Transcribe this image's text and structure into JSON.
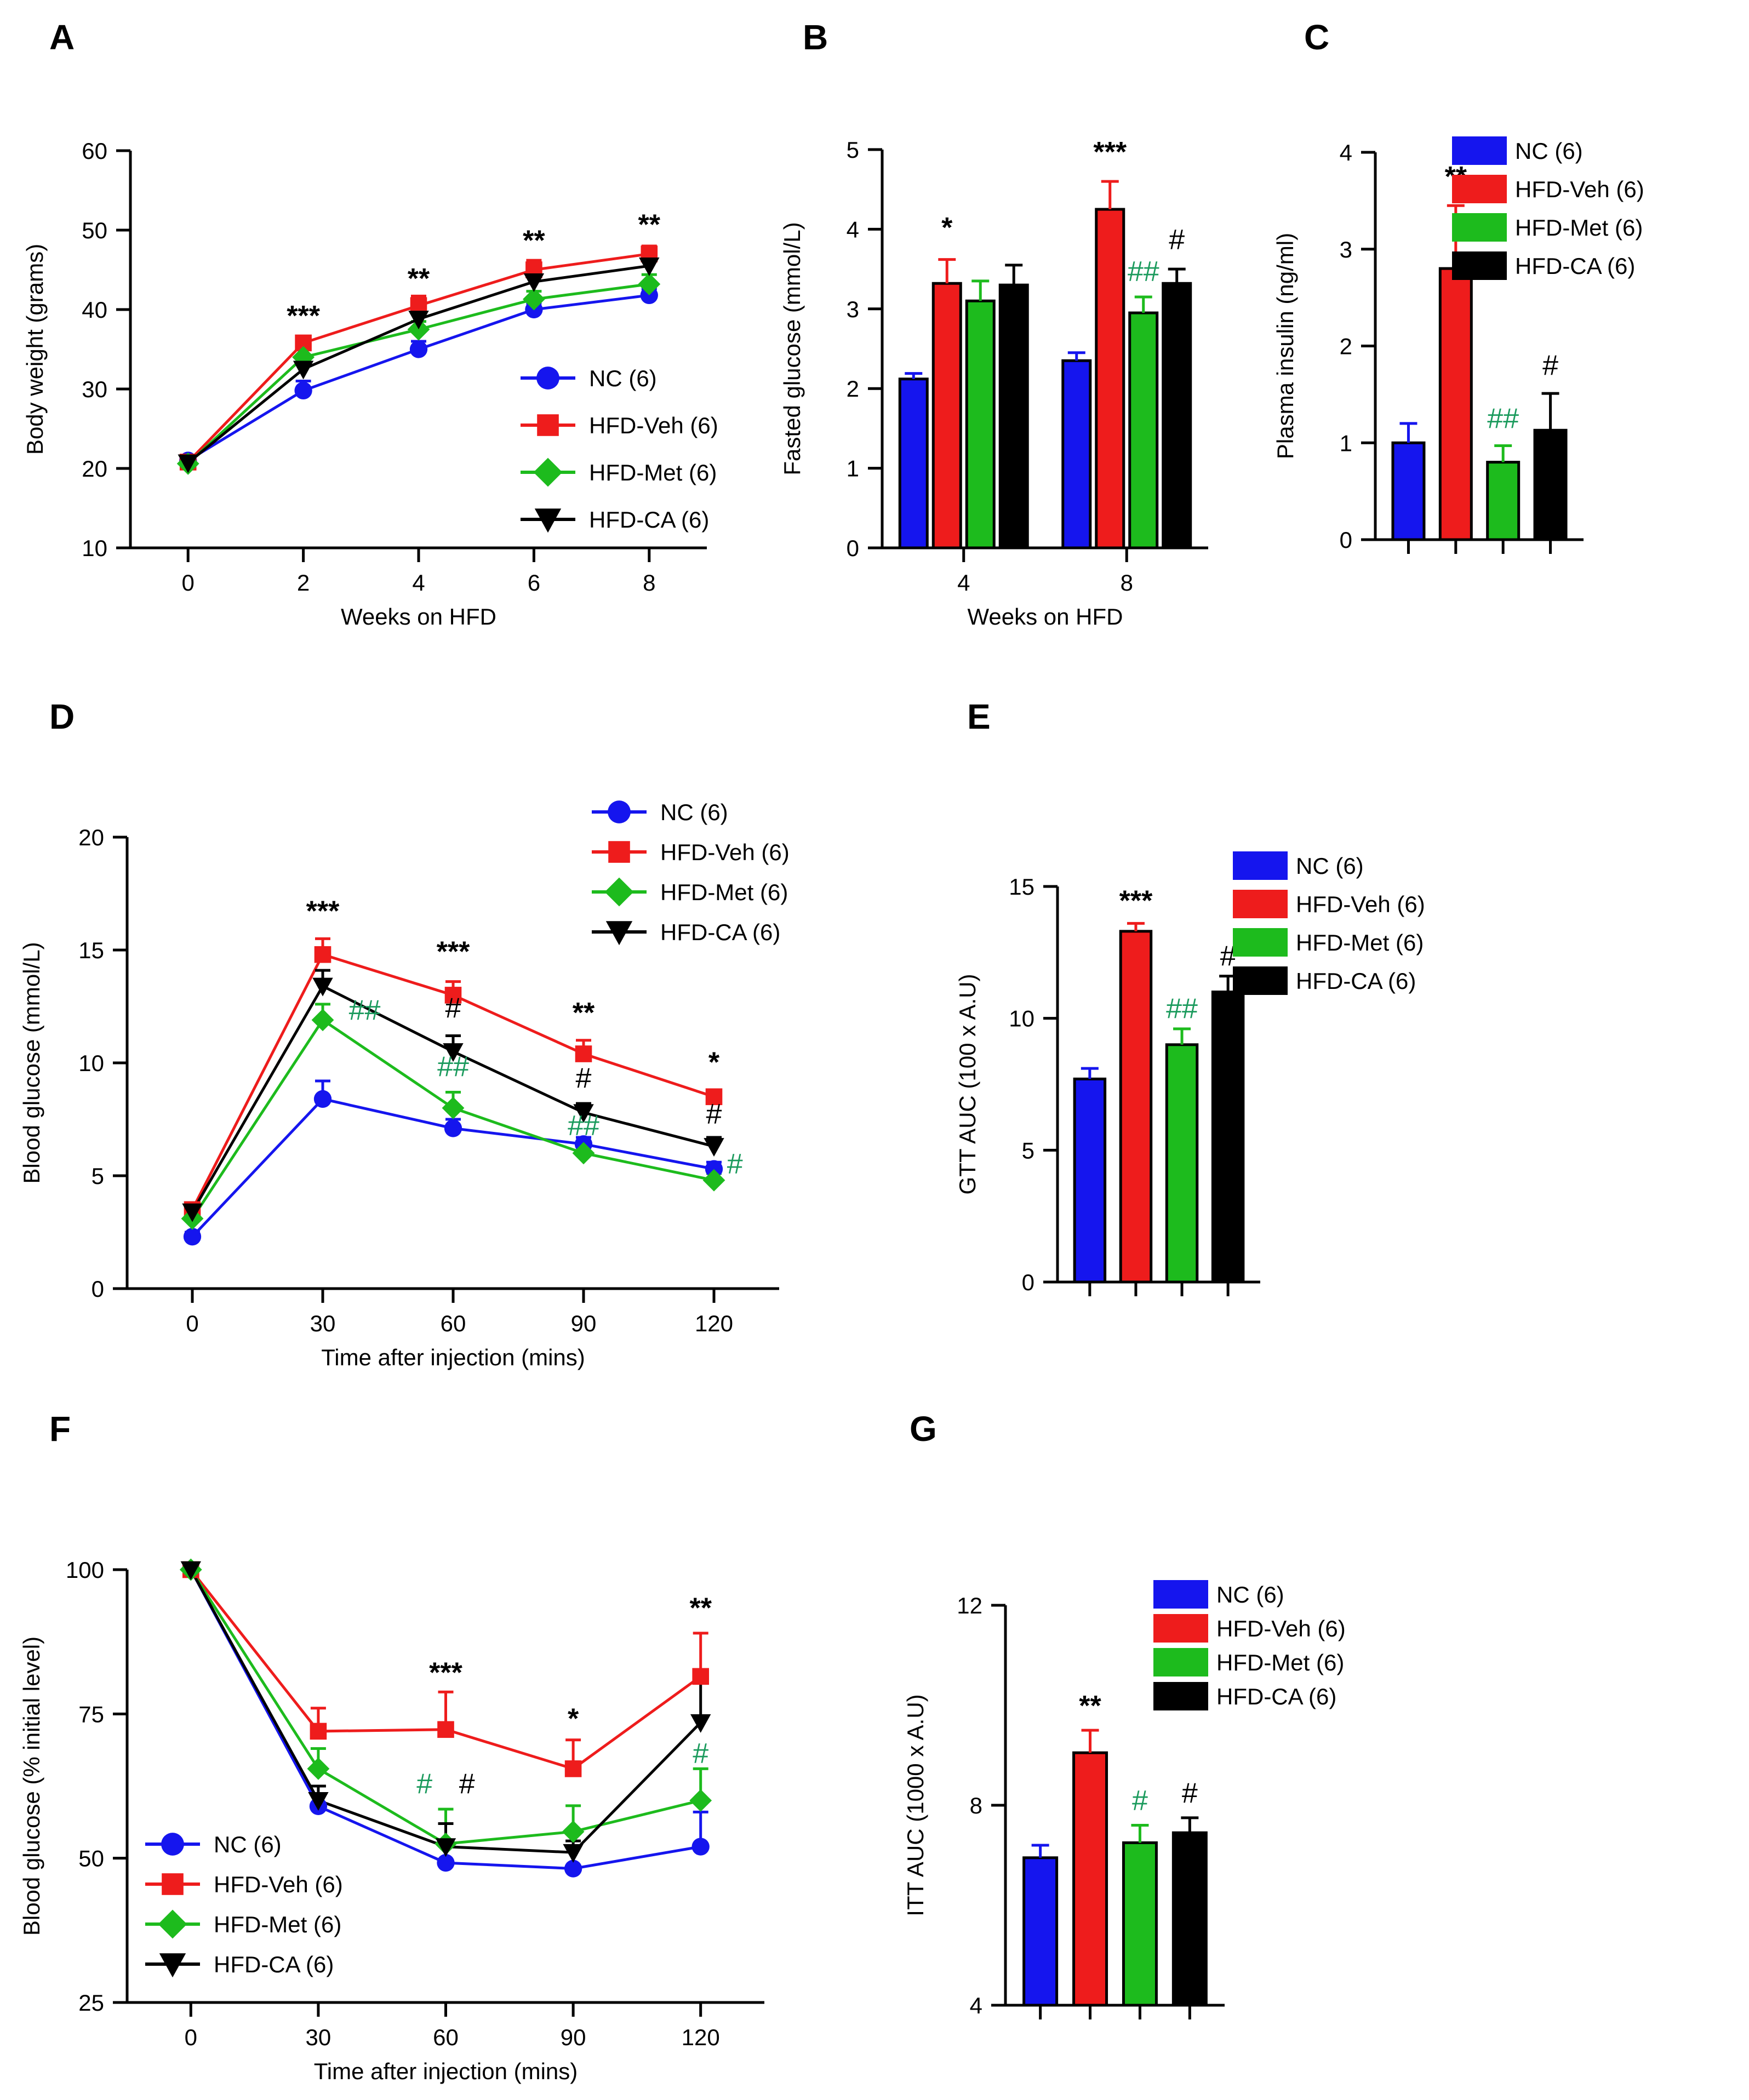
{
  "series_colors": {
    "NC": "#1515ee",
    "HFD-Veh": "#ee1c1c",
    "HFD-Met": "#1dbb1d",
    "HFD-CA": "#000000"
  },
  "annot_colors": {
    "black": "#000000",
    "green": "#1a9a5c"
  },
  "chart_data": [
    {
      "id": "A",
      "panel_label": "A",
      "type": "line",
      "xlabel": "Weeks on HFD",
      "ylabel": "Body weight (grams)",
      "ylim": [
        10,
        60
      ],
      "yticks": [
        10,
        20,
        30,
        40,
        50,
        60
      ],
      "x": [
        0,
        2,
        4,
        6,
        8
      ],
      "xticks": [
        0,
        2,
        4,
        6,
        8
      ],
      "xlim": [
        -1,
        9
      ],
      "series": [
        {
          "name": "NC (6)",
          "key": "NC",
          "values": [
            21,
            29.8,
            35,
            40,
            41.8
          ],
          "err": [
            0.4,
            1.2,
            1.0,
            0.8,
            0.8
          ]
        },
        {
          "name": "HFD-Veh (6)",
          "key": "HFD-Veh",
          "values": [
            20.8,
            35.8,
            40.5,
            45,
            47
          ],
          "err": [
            0.4,
            0.8,
            1.2,
            1.2,
            1.0
          ]
        },
        {
          "name": "HFD-Met (6)",
          "key": "HFD-Met",
          "values": [
            20.6,
            34,
            37.5,
            41.3,
            43.2
          ],
          "err": [
            0.4,
            1.0,
            1.0,
            1.0,
            1.2
          ]
        },
        {
          "name": "HFD-CA (6)",
          "key": "HFD-CA",
          "values": [
            20.7,
            32.5,
            38.8,
            43.5,
            45.5
          ],
          "err": [
            0.4,
            0.8,
            1.0,
            1.0,
            1.0
          ]
        }
      ],
      "annotations": [
        {
          "text": "***",
          "x": 2,
          "y": 38,
          "color": "black"
        },
        {
          "text": "**",
          "x": 4,
          "y": 42.7,
          "color": "black"
        },
        {
          "text": "**",
          "x": 6,
          "y": 47.5,
          "color": "black"
        },
        {
          "text": "**",
          "x": 8,
          "y": 49.5,
          "color": "black"
        }
      ]
    },
    {
      "id": "B",
      "panel_label": "B",
      "type": "bar",
      "xlabel": "Weeks on HFD",
      "ylabel": "Fasted glucose (mmol/L)",
      "ylim": [
        0,
        5
      ],
      "yticks": [
        0,
        1,
        2,
        3,
        4,
        5
      ],
      "categories": [
        "4",
        "8"
      ],
      "series": [
        {
          "name": "NC (6)",
          "key": "NC",
          "values": [
            2.12,
            2.35
          ],
          "err": [
            0.07,
            0.1
          ]
        },
        {
          "name": "HFD-Veh (6)",
          "key": "HFD-Veh",
          "values": [
            3.32,
            4.25
          ],
          "err": [
            0.3,
            0.35
          ]
        },
        {
          "name": "HFD-Met (6)",
          "key": "HFD-Met",
          "values": [
            3.1,
            2.95
          ],
          "err": [
            0.25,
            0.2
          ]
        },
        {
          "name": "HFD-CA (6)",
          "key": "HFD-CA",
          "values": [
            3.3,
            3.32
          ],
          "err": [
            0.25,
            0.18
          ]
        }
      ],
      "annotations": [
        {
          "text": "*",
          "cat": 0,
          "bar": 1,
          "y": 3.9,
          "color": "black"
        },
        {
          "text": "***",
          "cat": 1,
          "bar": 1,
          "y": 4.85,
          "color": "black"
        },
        {
          "text": "##",
          "cat": 1,
          "bar": 2,
          "y": 3.35,
          "color": "green"
        },
        {
          "text": "#",
          "cat": 1,
          "bar": 3,
          "y": 3.75,
          "color": "black"
        }
      ]
    },
    {
      "id": "C",
      "panel_label": "C",
      "type": "bar",
      "xlabel": "",
      "ylabel": "Plasma insulin (ng/ml)",
      "ylim": [
        0,
        4
      ],
      "yticks": [
        0,
        1,
        2,
        3,
        4
      ],
      "categories": [
        ""
      ],
      "series": [
        {
          "name": "NC (6)",
          "key": "NC",
          "values": [
            1.0
          ],
          "err": [
            0.2
          ]
        },
        {
          "name": "HFD-Veh (6)",
          "key": "HFD-Veh",
          "values": [
            2.8
          ],
          "err": [
            0.65
          ]
        },
        {
          "name": "HFD-Met (6)",
          "key": "HFD-Met",
          "values": [
            0.8
          ],
          "err": [
            0.17
          ]
        },
        {
          "name": "HFD-CA (6)",
          "key": "HFD-CA",
          "values": [
            1.13
          ],
          "err": [
            0.38
          ]
        }
      ],
      "annotations": [
        {
          "text": "**",
          "cat": 0,
          "bar": 1,
          "y": 3.65,
          "color": "black"
        },
        {
          "text": "##",
          "cat": 0,
          "bar": 2,
          "y": 1.15,
          "color": "green"
        },
        {
          "text": "#",
          "cat": 0,
          "bar": 3,
          "y": 1.7,
          "color": "black"
        }
      ]
    },
    {
      "id": "D",
      "panel_label": "D",
      "type": "line",
      "xlabel": "Time after injection (mins)",
      "ylabel": "Blood glucose (mmol/L)",
      "ylim": [
        0,
        20
      ],
      "yticks": [
        0,
        5,
        10,
        15,
        20
      ],
      "x": [
        0,
        30,
        60,
        90,
        120
      ],
      "xticks": [
        0,
        30,
        60,
        90,
        120
      ],
      "xlim": [
        -15,
        135
      ],
      "series": [
        {
          "name": "NC (6)",
          "key": "NC",
          "values": [
            2.3,
            8.4,
            7.1,
            6.4,
            5.3
          ],
          "err": [
            0.2,
            0.8,
            0.4,
            0.3,
            0.3
          ]
        },
        {
          "name": "HFD-Veh (6)",
          "key": "HFD-Veh",
          "values": [
            3.5,
            14.8,
            13.0,
            10.4,
            8.5
          ],
          "err": [
            0.2,
            0.7,
            0.6,
            0.6,
            0.3
          ]
        },
        {
          "name": "HFD-Met (6)",
          "key": "HFD-Met",
          "values": [
            3.1,
            11.9,
            8.0,
            6.0,
            4.8
          ],
          "err": [
            0.2,
            0.7,
            0.7,
            0.3,
            0.3
          ]
        },
        {
          "name": "HFD-CA (6)",
          "key": "HFD-CA",
          "values": [
            3.4,
            13.4,
            10.5,
            7.8,
            6.3
          ],
          "err": [
            0.2,
            0.7,
            0.7,
            0.4,
            0.4
          ]
        }
      ],
      "annotations": [
        {
          "text": "***",
          "x": 30,
          "y": 16.3,
          "color": "black"
        },
        {
          "text": "***",
          "x": 60,
          "y": 14.5,
          "color": "black"
        },
        {
          "text": "#",
          "x": 60,
          "y": 12.0,
          "color": "black"
        },
        {
          "text": "##",
          "x": 60,
          "y": 9.4,
          "color": "green"
        },
        {
          "text": "##",
          "x": 36,
          "y": 11.9,
          "color": "green",
          "anchor": "start"
        },
        {
          "text": "**",
          "x": 90,
          "y": 11.8,
          "color": "black"
        },
        {
          "text": "#",
          "x": 90,
          "y": 8.9,
          "color": "black"
        },
        {
          "text": "##",
          "x": 90,
          "y": 6.8,
          "color": "green"
        },
        {
          "text": "*",
          "x": 120,
          "y": 9.6,
          "color": "black"
        },
        {
          "text": "#",
          "x": 120,
          "y": 7.3,
          "color": "black"
        },
        {
          "text": "#",
          "x": 123,
          "y": 5.1,
          "color": "green",
          "anchor": "start"
        }
      ]
    },
    {
      "id": "E",
      "panel_label": "E",
      "type": "bar",
      "xlabel": "",
      "ylabel": "GTT AUC (100 x A.U)",
      "ylim": [
        0,
        15
      ],
      "yticks": [
        0,
        5,
        10,
        15
      ],
      "categories": [
        ""
      ],
      "series": [
        {
          "name": "NC (6)",
          "key": "NC",
          "values": [
            7.7
          ],
          "err": [
            0.4
          ]
        },
        {
          "name": "HFD-Veh (6)",
          "key": "HFD-Veh",
          "values": [
            13.3
          ],
          "err": [
            0.3
          ]
        },
        {
          "name": "HFD-Met (6)",
          "key": "HFD-Met",
          "values": [
            9.0
          ],
          "err": [
            0.6
          ]
        },
        {
          "name": "HFD-CA (6)",
          "key": "HFD-CA",
          "values": [
            11.0
          ],
          "err": [
            0.6
          ]
        }
      ],
      "annotations": [
        {
          "text": "***",
          "cat": 0,
          "bar": 1,
          "y": 14.1,
          "color": "black"
        },
        {
          "text": "##",
          "cat": 0,
          "bar": 2,
          "y": 10.0,
          "color": "green"
        },
        {
          "text": "#",
          "cat": 0,
          "bar": 3,
          "y": 12.0,
          "color": "black"
        }
      ]
    },
    {
      "id": "F",
      "panel_label": "F",
      "type": "line",
      "xlabel": "Time after injection (mins)",
      "ylabel": "Blood glucose (% initial level)",
      "ylim": [
        25,
        100
      ],
      "yticks": [
        25,
        50,
        75,
        100
      ],
      "x": [
        0,
        30,
        60,
        90,
        120
      ],
      "xticks": [
        0,
        30,
        60,
        90,
        120
      ],
      "xlim": [
        -15,
        135
      ],
      "series": [
        {
          "name": "NC (6)",
          "key": "NC",
          "values": [
            100,
            59,
            49.2,
            48.2,
            52
          ],
          "err": [
            0,
            2.0,
            0.5,
            0.5,
            6.0
          ]
        },
        {
          "name": "HFD-Veh (6)",
          "key": "HFD-Veh",
          "values": [
            100,
            72,
            72.3,
            65.5,
            81.5
          ],
          "err": [
            0,
            4.0,
            6.5,
            5.0,
            7.5
          ]
        },
        {
          "name": "HFD-Met (6)",
          "key": "HFD-Met",
          "values": [
            100,
            65.5,
            52.5,
            54.6,
            60
          ],
          "err": [
            0,
            3.5,
            6.0,
            4.5,
            5.5
          ]
        },
        {
          "name": "HFD-CA (6)",
          "key": "HFD-CA",
          "values": [
            100,
            60,
            52,
            51,
            73.5
          ],
          "err": [
            0,
            2.5,
            4.0,
            2.0,
            7.5
          ]
        }
      ],
      "annotations": [
        {
          "text": "***",
          "x": 60,
          "y": 80.5,
          "color": "black"
        },
        {
          "text": "#",
          "x": 55,
          "y": 61.2,
          "color": "green"
        },
        {
          "text": "#",
          "x": 65,
          "y": 61.2,
          "color": "black"
        },
        {
          "text": "*",
          "x": 90,
          "y": 72.5,
          "color": "black"
        },
        {
          "text": "**",
          "x": 120,
          "y": 91.7,
          "color": "black"
        },
        {
          "text": "#",
          "x": 120,
          "y": 66.5,
          "color": "green"
        }
      ]
    },
    {
      "id": "G",
      "panel_label": "G",
      "type": "bar",
      "xlabel": "",
      "ylabel": "ITT AUC (1000 x A.U)",
      "ylim": [
        4,
        12
      ],
      "yticks": [
        4,
        8,
        12
      ],
      "categories": [
        ""
      ],
      "series": [
        {
          "name": "NC (6)",
          "key": "NC",
          "values": [
            6.95
          ],
          "err": [
            0.25
          ]
        },
        {
          "name": "HFD-Veh (6)",
          "key": "HFD-Veh",
          "values": [
            9.05
          ],
          "err": [
            0.45
          ]
        },
        {
          "name": "HFD-Met (6)",
          "key": "HFD-Met",
          "values": [
            7.25
          ],
          "err": [
            0.35
          ]
        },
        {
          "name": "HFD-CA (6)",
          "key": "HFD-CA",
          "values": [
            7.45
          ],
          "err": [
            0.3
          ]
        }
      ],
      "annotations": [
        {
          "text": "**",
          "cat": 0,
          "bar": 1,
          "y": 9.8,
          "color": "black"
        },
        {
          "text": "#",
          "cat": 0,
          "bar": 2,
          "y": 7.9,
          "color": "green"
        },
        {
          "text": "#",
          "cat": 0,
          "bar": 3,
          "y": 8.05,
          "color": "black"
        }
      ]
    }
  ]
}
